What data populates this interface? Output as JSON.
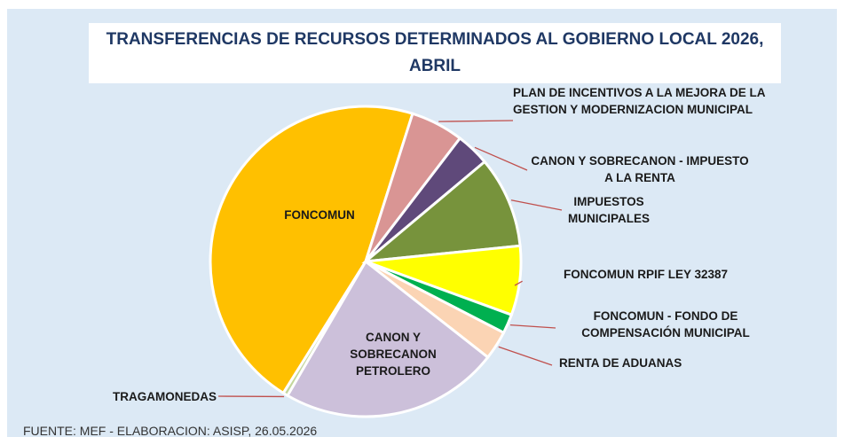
{
  "chart_data": {
    "type": "pie",
    "title": "TRANSFERENCIAS DE RECURSOS DETERMINADOS AL GOBIERNO LOCAL 2026, ABRIL",
    "categories": [
      "FONCOMUN",
      "PLAN DE INCENTIVOS A LA MEJORA DE LA GESTION Y MODERNIZACION MUNICIPAL",
      "CANON Y SOBRECANON - IMPUESTO A LA RENTA",
      "IMPUESTOS MUNICIPALES",
      "FONCOMUN RPIF LEY 32387",
      "FONCOMUN - FONDO DE COMPENSACIÓN MUNICIPAL",
      "RENTA DE ADUANAS",
      "CANON Y SOBRECANON PETROLERO",
      "TRAGAMONEDAS"
    ],
    "values": [
      46,
      5.5,
      3.5,
      9.5,
      7.2,
      2,
      3,
      22.8,
      0.5
    ],
    "colors": [
      "#FFC000",
      "#D99594",
      "#5F497A",
      "#77933C",
      "#FFFF00",
      "#00B050",
      "#FBD4B4",
      "#CCC0DA",
      "#C3D69B"
    ],
    "source": "FUENTE: MEF - ELABORACION: ASISP, 26.05.2026"
  }
}
